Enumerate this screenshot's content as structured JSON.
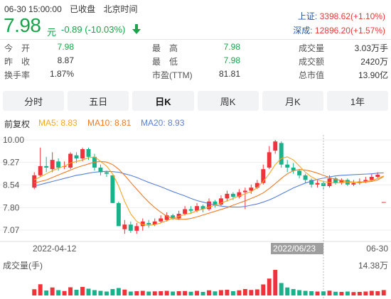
{
  "header": {
    "status_time": "06-30 15:00:00",
    "status_state": "已收盘",
    "status_zone": "北京时间",
    "price": "7.98",
    "unit": "元",
    "change": "-0.89",
    "change_pct": "(-10.03%)",
    "indices": [
      {
        "label": "上证:",
        "value": "3398.62(+1.10%)"
      },
      {
        "label": "深成:",
        "value": "12896.20(+1.57%)"
      }
    ]
  },
  "stats": [
    {
      "label": "今　开",
      "value": "7.98",
      "color": "green"
    },
    {
      "label": "最　高",
      "value": "7.98",
      "color": "green"
    },
    {
      "label": "成交量",
      "value": "3.03万手",
      "color": "plain"
    },
    {
      "label": "昨　收",
      "value": "8.87",
      "color": "plain"
    },
    {
      "label": "最　低",
      "value": "7.98",
      "color": "green"
    },
    {
      "label": "成交额",
      "value": "2420万",
      "color": "plain"
    },
    {
      "label": "换手率",
      "value": "1.87%",
      "color": "plain"
    },
    {
      "label": "市盈(TTM)",
      "value": "81.81",
      "color": "plain"
    },
    {
      "label": "总市值",
      "value": "13.90亿",
      "color": "plain"
    }
  ],
  "tabs": [
    {
      "label": "分时",
      "active": false
    },
    {
      "label": "五日",
      "active": false
    },
    {
      "label": "日K",
      "active": true
    },
    {
      "label": "周K",
      "active": false
    },
    {
      "label": "月K",
      "active": false
    },
    {
      "label": "1年",
      "active": false
    }
  ],
  "legend": {
    "adjust": "前复权",
    "ma5": "MA5: 8.83",
    "ma10": "MA10: 8.81",
    "ma20": "MA20: 8.93"
  },
  "colors": {
    "up": "#f0333b",
    "down": "#18b38b",
    "ma5": "#f5a623",
    "ma10": "#f07b25",
    "ma20": "#5a7fd6",
    "green_text": "#1aa34a",
    "red_text": "#e23a3a",
    "index_label": "#2256a8"
  },
  "chart_data": {
    "type": "candlestick",
    "ytick_labels": [
      "10.00",
      "9.27",
      "8.54",
      "7.80",
      "7.07"
    ],
    "y_ticks": [
      10.0,
      9.27,
      8.54,
      7.8,
      7.07
    ],
    "ylim": [
      6.75,
      10.2
    ],
    "x_labels": {
      "left": "2022-04-12",
      "right": "06-30",
      "cursor": "2022/06/23"
    },
    "cursor_index": 48,
    "volume_label": "成交量(手)",
    "volume_max_label": "14.38万",
    "candles": [
      {
        "o": 8.45,
        "c": 8.85,
        "h": 8.95,
        "l": 8.4,
        "v": 3.5
      },
      {
        "o": 8.85,
        "c": 9.15,
        "h": 9.75,
        "l": 8.8,
        "v": 6.3
      },
      {
        "o": 9.15,
        "c": 9.1,
        "h": 9.45,
        "l": 8.95,
        "v": 2.8
      },
      {
        "o": 9.05,
        "c": 9.35,
        "h": 9.6,
        "l": 8.95,
        "v": 4.5
      },
      {
        "o": 9.3,
        "c": 9.1,
        "h": 9.4,
        "l": 9.0,
        "v": 3.0
      },
      {
        "o": 9.15,
        "c": 9.15,
        "h": 9.3,
        "l": 9.05,
        "v": 2.5
      },
      {
        "o": 9.1,
        "c": 9.55,
        "h": 9.6,
        "l": 9.05,
        "v": 4.6
      },
      {
        "o": 9.5,
        "c": 9.4,
        "h": 9.6,
        "l": 9.25,
        "v": 3.2
      },
      {
        "o": 9.4,
        "c": 9.7,
        "h": 9.75,
        "l": 9.3,
        "v": 4.8
      },
      {
        "o": 9.7,
        "c": 9.45,
        "h": 9.75,
        "l": 9.35,
        "v": 3.8
      },
      {
        "o": 9.45,
        "c": 9.1,
        "h": 9.55,
        "l": 9.0,
        "v": 3.0
      },
      {
        "o": 9.1,
        "c": 8.95,
        "h": 9.2,
        "l": 8.85,
        "v": 2.6
      },
      {
        "o": 8.95,
        "c": 8.9,
        "h": 9.0,
        "l": 8.8,
        "v": 2.2
      },
      {
        "o": 8.85,
        "c": 7.95,
        "h": 8.85,
        "l": 7.95,
        "v": 3.6
      },
      {
        "o": 7.95,
        "c": 7.2,
        "h": 8.0,
        "l": 7.2,
        "v": 4.2
      },
      {
        "o": 7.1,
        "c": 7.25,
        "h": 7.4,
        "l": 6.95,
        "v": 3.3
      },
      {
        "o": 7.25,
        "c": 7.05,
        "h": 7.35,
        "l": 6.98,
        "v": 2.2
      },
      {
        "o": 7.05,
        "c": 7.2,
        "h": 7.3,
        "l": 6.95,
        "v": 2.4
      },
      {
        "o": 7.2,
        "c": 7.35,
        "h": 7.45,
        "l": 7.05,
        "v": 2.6
      },
      {
        "o": 7.3,
        "c": 7.25,
        "h": 7.4,
        "l": 7.15,
        "v": 2.2
      },
      {
        "o": 7.25,
        "c": 7.35,
        "h": 7.45,
        "l": 7.2,
        "v": 2.3
      },
      {
        "o": 7.35,
        "c": 7.45,
        "h": 7.55,
        "l": 7.3,
        "v": 2.4
      },
      {
        "o": 7.4,
        "c": 7.55,
        "h": 7.65,
        "l": 7.35,
        "v": 2.6
      },
      {
        "o": 7.55,
        "c": 7.45,
        "h": 7.6,
        "l": 7.4,
        "v": 2.2
      },
      {
        "o": 7.45,
        "c": 7.6,
        "h": 7.7,
        "l": 7.4,
        "v": 2.4
      },
      {
        "o": 7.6,
        "c": 7.75,
        "h": 7.85,
        "l": 7.55,
        "v": 2.5
      },
      {
        "o": 7.75,
        "c": 7.7,
        "h": 7.85,
        "l": 7.6,
        "v": 2.1
      },
      {
        "o": 7.7,
        "c": 7.85,
        "h": 7.95,
        "l": 7.65,
        "v": 2.6
      },
      {
        "o": 7.85,
        "c": 7.75,
        "h": 7.9,
        "l": 7.65,
        "v": 2.0
      },
      {
        "o": 7.75,
        "c": 8.0,
        "h": 8.1,
        "l": 7.7,
        "v": 2.9
      },
      {
        "o": 8.0,
        "c": 7.9,
        "h": 8.05,
        "l": 7.8,
        "v": 2.3
      },
      {
        "o": 7.9,
        "c": 8.1,
        "h": 8.2,
        "l": 7.85,
        "v": 3.0
      },
      {
        "o": 8.1,
        "c": 8.25,
        "h": 8.35,
        "l": 8.0,
        "v": 3.2
      },
      {
        "o": 8.25,
        "c": 8.15,
        "h": 8.3,
        "l": 8.05,
        "v": 2.4
      },
      {
        "o": 8.15,
        "c": 8.3,
        "h": 8.4,
        "l": 8.1,
        "v": 2.9
      },
      {
        "o": 8.3,
        "c": 8.35,
        "h": 8.45,
        "l": 7.75,
        "v": 3.6
      },
      {
        "o": 8.35,
        "c": 8.45,
        "h": 8.55,
        "l": 8.25,
        "v": 3.1
      },
      {
        "o": 8.45,
        "c": 8.6,
        "h": 8.7,
        "l": 8.4,
        "v": 3.4
      },
      {
        "o": 8.6,
        "c": 9.05,
        "h": 9.2,
        "l": 8.55,
        "v": 6.2
      },
      {
        "o": 9.1,
        "c": 9.6,
        "h": 9.8,
        "l": 9.05,
        "v": 9.5
      },
      {
        "o": 9.65,
        "c": 9.95,
        "h": 10.0,
        "l": 9.55,
        "v": 14.38
      },
      {
        "o": 9.9,
        "c": 9.2,
        "h": 9.95,
        "l": 9.1,
        "v": 7.0
      },
      {
        "o": 9.2,
        "c": 9.1,
        "h": 9.35,
        "l": 8.95,
        "v": 4.5
      },
      {
        "o": 9.1,
        "c": 9.0,
        "h": 9.25,
        "l": 8.9,
        "v": 3.6
      },
      {
        "o": 9.0,
        "c": 8.85,
        "h": 9.05,
        "l": 8.75,
        "v": 3.0
      },
      {
        "o": 8.85,
        "c": 8.7,
        "h": 8.9,
        "l": 8.6,
        "v": 2.6
      },
      {
        "o": 8.7,
        "c": 8.55,
        "h": 8.75,
        "l": 8.45,
        "v": 2.4
      },
      {
        "o": 8.55,
        "c": 8.6,
        "h": 8.7,
        "l": 8.45,
        "v": 2.2
      },
      {
        "o": 8.6,
        "c": 8.5,
        "h": 8.65,
        "l": 8.4,
        "v": 2.3
      },
      {
        "o": 8.5,
        "c": 8.75,
        "h": 8.85,
        "l": 8.45,
        "v": 2.7
      },
      {
        "o": 8.75,
        "c": 8.6,
        "h": 8.8,
        "l": 8.55,
        "v": 2.1
      },
      {
        "o": 8.6,
        "c": 8.7,
        "h": 8.75,
        "l": 8.55,
        "v": 2.0
      },
      {
        "o": 8.7,
        "c": 8.55,
        "h": 8.75,
        "l": 8.5,
        "v": 2.2
      },
      {
        "o": 8.55,
        "c": 8.6,
        "h": 8.7,
        "l": 8.5,
        "v": 1.9
      },
      {
        "o": 8.6,
        "c": 8.65,
        "h": 8.75,
        "l": 8.55,
        "v": 2.0
      },
      {
        "o": 8.65,
        "c": 8.7,
        "h": 8.8,
        "l": 8.6,
        "v": 2.2
      },
      {
        "o": 8.7,
        "c": 8.8,
        "h": 8.9,
        "l": 8.65,
        "v": 2.6
      },
      {
        "o": 8.8,
        "c": 8.87,
        "h": 8.95,
        "l": 8.75,
        "v": 2.4
      },
      {
        "o": 7.98,
        "c": 7.98,
        "h": 7.98,
        "l": 7.98,
        "v": 3.03
      }
    ],
    "ma5": [
      8.7,
      8.8,
      8.9,
      9.0,
      9.08,
      9.15,
      9.25,
      9.3,
      9.35,
      9.42,
      9.45,
      9.3,
      9.15,
      8.9,
      8.5,
      8.0,
      7.6,
      7.35,
      7.25,
      7.22,
      7.25,
      7.3,
      7.38,
      7.45,
      7.52,
      7.58,
      7.62,
      7.7,
      7.75,
      7.82,
      7.88,
      7.95,
      8.02,
      8.1,
      8.18,
      8.25,
      8.32,
      8.45,
      8.65,
      8.9,
      9.2,
      9.4,
      9.45,
      9.35,
      9.15,
      8.95,
      8.8,
      8.7,
      8.65,
      8.62,
      8.6,
      8.62,
      8.62,
      8.63,
      8.63,
      8.65,
      8.68,
      8.75,
      8.83
    ],
    "ma10": [
      8.6,
      8.65,
      8.7,
      8.78,
      8.86,
      8.94,
      9.02,
      9.1,
      9.16,
      9.22,
      9.28,
      9.3,
      9.28,
      9.2,
      9.05,
      8.85,
      8.62,
      8.4,
      8.18,
      7.98,
      7.8,
      7.65,
      7.52,
      7.45,
      7.42,
      7.42,
      7.45,
      7.5,
      7.56,
      7.62,
      7.68,
      7.74,
      7.8,
      7.88,
      7.95,
      8.02,
      8.1,
      8.18,
      8.28,
      8.42,
      8.58,
      8.75,
      8.9,
      9.0,
      9.04,
      9.02,
      8.98,
      8.92,
      8.85,
      8.78,
      8.72,
      8.68,
      8.65,
      8.63,
      8.62,
      8.63,
      8.65,
      8.7,
      8.81
    ],
    "ma20": [
      8.5,
      8.55,
      8.6,
      8.65,
      8.7,
      8.75,
      8.8,
      8.85,
      8.88,
      8.92,
      8.95,
      8.97,
      8.98,
      8.97,
      8.95,
      8.9,
      8.85,
      8.78,
      8.7,
      8.62,
      8.55,
      8.48,
      8.4,
      8.32,
      8.25,
      8.18,
      8.1,
      8.03,
      7.98,
      7.93,
      7.88,
      7.85,
      7.83,
      7.82,
      7.82,
      7.84,
      7.88,
      7.92,
      7.98,
      8.05,
      8.14,
      8.24,
      8.34,
      8.44,
      8.52,
      8.6,
      8.66,
      8.72,
      8.76,
      8.8,
      8.83,
      8.85,
      8.86,
      8.87,
      8.88,
      8.89,
      8.9,
      8.92,
      8.93
    ]
  }
}
